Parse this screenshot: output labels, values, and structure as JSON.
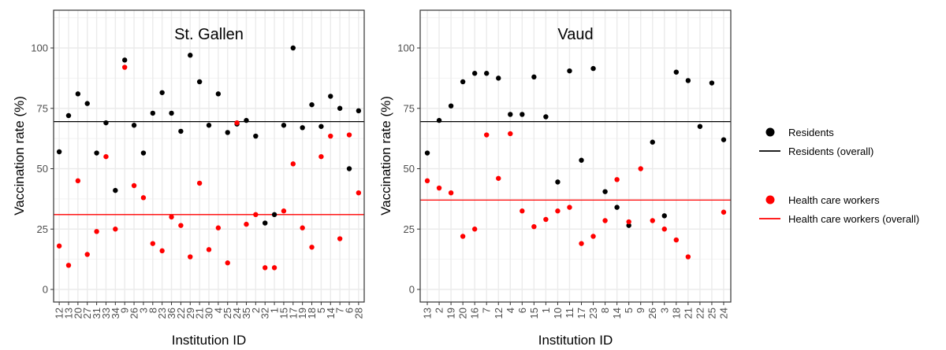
{
  "chart_data": {
    "type": "scatter",
    "ylabel": "Vaccination rate (%)",
    "xlabel": "Institution ID",
    "ylim": [
      -3,
      115
    ],
    "yticks": [
      0,
      25,
      50,
      75,
      100
    ],
    "grid": true,
    "legend_position": "right",
    "colors": {
      "residents": "#000000",
      "hcw": "#ff0000"
    },
    "legend": [
      {
        "label": "Residents",
        "kind": "point",
        "series": "residents"
      },
      {
        "label": "Residents (overall)",
        "kind": "line",
        "series": "residents"
      },
      {
        "label": "Health care workers",
        "kind": "point",
        "series": "hcw"
      },
      {
        "label": "Health care workers (overall)",
        "kind": "line",
        "series": "hcw"
      }
    ],
    "panels": [
      {
        "title": "St. Gallen",
        "categories": [
          "12",
          "13",
          "20",
          "27",
          "31",
          "33",
          "34",
          "9",
          "26",
          "3",
          "8",
          "23",
          "36",
          "22",
          "29",
          "21",
          "30",
          "4",
          "25",
          "24",
          "35",
          "2",
          "32",
          "1",
          "15",
          "17",
          "19",
          "18",
          "5",
          "14",
          "7",
          "6",
          "28"
        ],
        "residents": [
          57,
          72,
          81,
          77,
          56.5,
          69,
          41,
          95,
          68,
          56.5,
          73,
          81.5,
          73,
          65.5,
          97,
          86,
          68,
          81,
          65,
          68.5,
          70,
          63.5,
          27.5,
          31,
          68,
          100,
          67,
          76.5,
          67.5,
          80,
          75,
          50,
          74
        ],
        "hcw": [
          18,
          10,
          45,
          14.5,
          24,
          55,
          25,
          92,
          43,
          38,
          19,
          16,
          30,
          26.5,
          13.5,
          44,
          16.5,
          25.5,
          11,
          69,
          27,
          31,
          9,
          9,
          32.5,
          52,
          25.5,
          17.5,
          55,
          63.5,
          21,
          64,
          40
        ],
        "residents_overall": 69.5,
        "hcw_overall": 31
      },
      {
        "title": "Vaud",
        "categories": [
          "13",
          "2",
          "19",
          "20",
          "16",
          "7",
          "12",
          "4",
          "6",
          "15",
          "1",
          "10",
          "11",
          "17",
          "23",
          "8",
          "14",
          "5",
          "9",
          "26",
          "3",
          "18",
          "21",
          "22",
          "25",
          "24"
        ],
        "residents": [
          56.5,
          70,
          76,
          86,
          89.5,
          89.5,
          87.5,
          72.5,
          72.5,
          88,
          71.5,
          44.5,
          90.5,
          53.5,
          91.5,
          40.5,
          34,
          26.5,
          null,
          61,
          30.5,
          90,
          86.5,
          67.5,
          85.5,
          62
        ],
        "hcw": [
          45,
          42,
          40,
          22,
          25,
          64,
          46,
          64.5,
          32.5,
          26,
          29,
          32.5,
          34,
          19,
          22,
          28.5,
          45.5,
          28,
          50,
          28.5,
          25,
          20.5,
          13.5,
          null,
          null,
          32
        ],
        "residents_overall": 69.5,
        "hcw_overall": 37
      }
    ]
  }
}
